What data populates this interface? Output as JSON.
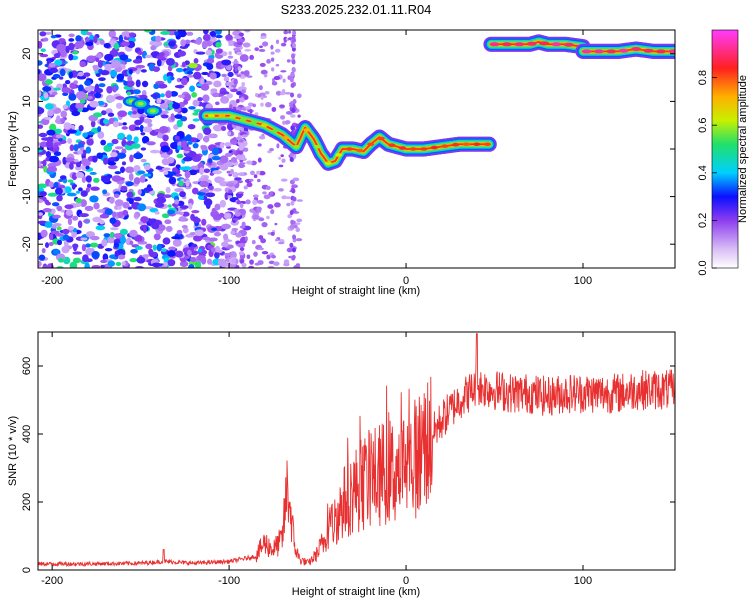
{
  "title": "S233.2025.232.01.11.R04",
  "chart_data": [
    {
      "type": "heatmap",
      "xlabel": "Height of straight line (km)",
      "ylabel": "Frequency (Hz)",
      "xlim": [
        -208,
        152
      ],
      "ylim": [
        -25,
        25
      ],
      "xticks": [
        -200,
        -100,
        0,
        100
      ],
      "xtick_labels": [
        "-200",
        "-100",
        "0",
        "100"
      ],
      "yticks": [
        -20,
        -10,
        0,
        10,
        20
      ],
      "ytick_labels": [
        "-20",
        "-10",
        "0",
        "10",
        "20"
      ],
      "colorbar": {
        "label": "Normalized spectral amplitude",
        "range": [
          0,
          1
        ],
        "ticks": [
          0,
          0.2,
          0.4,
          0.6,
          0.8
        ],
        "tick_labels": [
          "0.0",
          "0.2",
          "0.4",
          "0.6",
          "0.8"
        ],
        "colors": [
          "#ffffff",
          "#8d3df0",
          "#0a10ff",
          "#00d0ff",
          "#20e06a",
          "#c8f000",
          "#ffb000",
          "#ff2020",
          "#ff3cff"
        ]
      },
      "ridge": {
        "description": "dominant frequency track",
        "x": [
          -113,
          -100,
          -90,
          -80,
          -70,
          -62,
          -57,
          -52,
          -48,
          -44,
          -40,
          -36,
          -30,
          -24,
          -20,
          -15,
          -10,
          0,
          10,
          20,
          30,
          47
        ],
        "y": [
          7,
          7,
          6,
          5,
          3,
          0.5,
          4.5,
          2,
          -1,
          -3,
          -2.5,
          0,
          0,
          -0.5,
          1,
          2.5,
          1,
          0,
          0,
          0.5,
          1,
          1
        ]
      },
      "ridge_upper": [
        {
          "x": [
            48,
            60,
            70,
            75,
            80,
            90,
            100
          ],
          "y": [
            22,
            22,
            22,
            22.5,
            22,
            22,
            21.5
          ]
        },
        {
          "x": [
            100,
            110,
            120,
            130,
            140,
            152
          ],
          "y": [
            20.5,
            20.5,
            20.5,
            21,
            20.5,
            20.5
          ]
        }
      ],
      "noise_region_x": [
        -208,
        -100
      ]
    },
    {
      "type": "line",
      "xlabel": "Height of straight line (km)",
      "ylabel": "SNR (10 * v/v)",
      "xlim": [
        -208,
        152
      ],
      "ylim": [
        0,
        700
      ],
      "xticks": [
        -200,
        -100,
        0,
        100
      ],
      "xtick_labels": [
        "-200",
        "-100",
        "0",
        "100"
      ],
      "yticks": [
        0,
        200,
        400,
        600
      ],
      "ytick_labels": [
        "0",
        "200",
        "400",
        "600"
      ],
      "color": "#e83030",
      "series": [
        {
          "name": "SNR",
          "x": [
            -208,
            -180,
            -150,
            -137,
            -120,
            -100,
            -85,
            -80,
            -75,
            -70,
            -67,
            -63,
            -60,
            -55,
            -50,
            -45,
            -40,
            -35,
            -30,
            -25,
            -20,
            -15,
            -10,
            -5,
            0,
            5,
            10,
            15,
            20,
            25,
            30,
            35,
            40,
            50,
            60,
            70,
            80,
            90,
            100,
            110,
            120,
            130,
            140,
            152
          ],
          "y": [
            18,
            18,
            20,
            25,
            20,
            25,
            40,
            80,
            60,
            90,
            250,
            70,
            30,
            20,
            50,
            100,
            150,
            200,
            230,
            250,
            270,
            280,
            290,
            290,
            310,
            330,
            360,
            400,
            440,
            470,
            500,
            520,
            540,
            530,
            520,
            520,
            510,
            520,
            520,
            520,
            520,
            530,
            530,
            530
          ]
        }
      ],
      "peak": {
        "x": 40,
        "y": 695
      }
    }
  ]
}
